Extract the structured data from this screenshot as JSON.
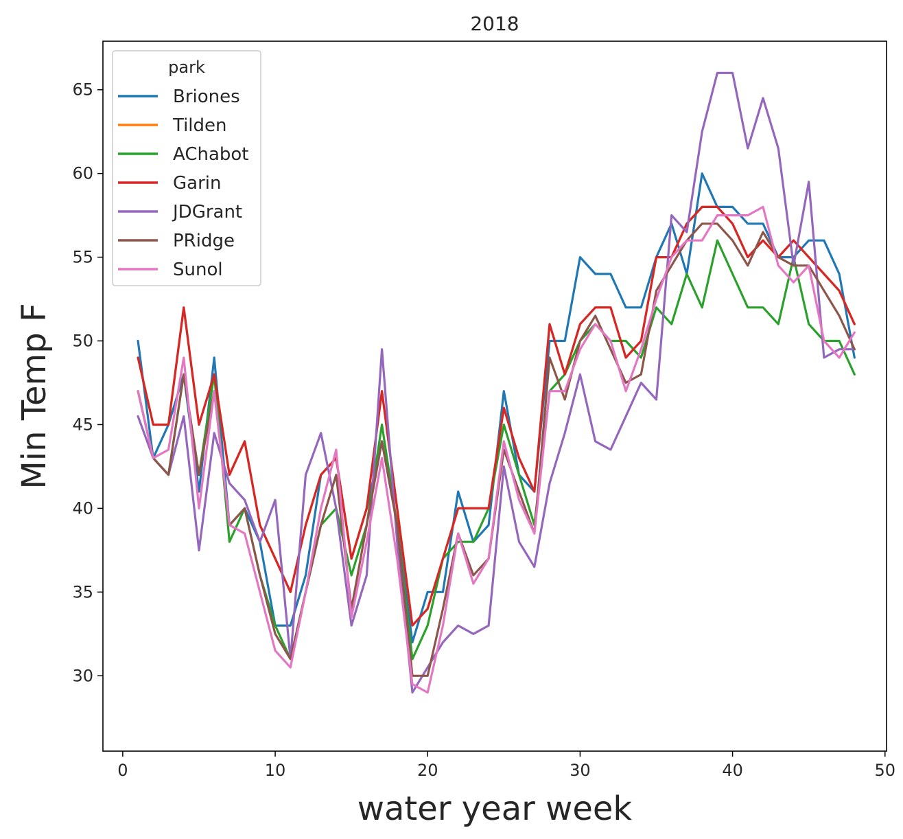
{
  "chart_data": {
    "type": "line",
    "title": "2018",
    "xlabel": "water year week",
    "ylabel": "Min Temp F",
    "xlim": [
      -1.3,
      50.1
    ],
    "ylim": [
      25.5,
      67.9
    ],
    "xticks": [
      0,
      10,
      20,
      30,
      40,
      50
    ],
    "yticks": [
      30,
      35,
      40,
      45,
      50,
      55,
      60,
      65
    ],
    "grid": false,
    "legend": {
      "title": "park",
      "position": "upper-left"
    },
    "x": [
      1,
      2,
      3,
      4,
      5,
      6,
      7,
      8,
      9,
      10,
      11,
      12,
      13,
      14,
      15,
      16,
      17,
      18,
      19,
      20,
      21,
      22,
      23,
      24,
      25,
      26,
      27,
      28,
      29,
      30,
      31,
      32,
      33,
      34,
      35,
      36,
      37,
      38,
      39,
      40,
      41,
      42,
      43,
      44,
      45,
      46,
      47,
      48
    ],
    "series": [
      {
        "name": "Briones",
        "color": "#1f77b4",
        "values": [
          50,
          43,
          45,
          48,
          41,
          49,
          39,
          40,
          38,
          33,
          33,
          36,
          42,
          43,
          37,
          40,
          44,
          39,
          32,
          35,
          35,
          41,
          38,
          39,
          47,
          42,
          41,
          50,
          50,
          55,
          54,
          54,
          52,
          52,
          55,
          57,
          54,
          60,
          58,
          58,
          57,
          57,
          55,
          55,
          56,
          56,
          54,
          49
        ]
      },
      {
        "name": "Tilden",
        "color": "#ff7f0e",
        "values": [
          49,
          45,
          45,
          52,
          45,
          48,
          42,
          44,
          39,
          37,
          35,
          39,
          42,
          43,
          37,
          40,
          47,
          40,
          33,
          34,
          37,
          40,
          40,
          40,
          46,
          43,
          41,
          51,
          48,
          51,
          52,
          52,
          49,
          50,
          55,
          55,
          57,
          58,
          58,
          57,
          55,
          56,
          55,
          56,
          55,
          54,
          53,
          51
        ]
      },
      {
        "name": "AChabot",
        "color": "#2ca02c",
        "values": [
          47,
          43,
          42,
          48,
          42,
          48,
          38,
          40,
          36,
          33,
          31,
          35,
          39,
          40,
          36,
          39,
          45,
          39,
          31,
          33,
          37,
          38,
          38,
          40,
          45,
          42,
          39,
          47,
          48,
          50,
          51,
          50,
          50,
          49,
          52,
          51,
          54,
          52,
          56,
          54,
          52,
          52,
          51,
          55,
          51,
          50,
          50,
          48
        ]
      },
      {
        "name": "Garin",
        "color": "#d62728",
        "values": [
          49,
          45,
          45,
          52,
          45,
          48,
          42,
          44,
          39,
          37,
          35,
          39,
          42,
          43,
          37,
          40,
          47,
          40,
          33,
          34,
          37,
          40,
          40,
          40,
          46,
          43,
          41,
          51,
          48,
          51,
          52,
          52,
          49,
          50,
          55,
          55,
          57,
          58,
          58,
          57,
          55,
          56,
          55,
          56,
          55,
          54,
          53,
          51
        ]
      },
      {
        "name": "JDGrant",
        "color": "#9467bd",
        "values": [
          45.5,
          43,
          42,
          45.5,
          37.5,
          44.5,
          41.5,
          40.5,
          38,
          40.5,
          31,
          42,
          44.5,
          40,
          33,
          36,
          49.5,
          38,
          29,
          30.5,
          32,
          33,
          32.5,
          33,
          42.5,
          38,
          36.5,
          41.5,
          44.5,
          48,
          44,
          43.5,
          45.5,
          47.5,
          46.5,
          57.5,
          56.5,
          62.5,
          66,
          66,
          61.5,
          64.5,
          61.5,
          54.5,
          59.5,
          49,
          49.5,
          49.5
        ]
      },
      {
        "name": "PRidge",
        "color": "#8c564b",
        "values": [
          47,
          43,
          42,
          48,
          42,
          47,
          39,
          40,
          36,
          32.5,
          31,
          35,
          39,
          42,
          34,
          39,
          44,
          39,
          30,
          30,
          34,
          38.5,
          36,
          37,
          43.5,
          41,
          38.5,
          49,
          46.5,
          50,
          51.5,
          49.5,
          47.5,
          48,
          53,
          54.5,
          56,
          57,
          57,
          56,
          54.5,
          56.5,
          55,
          54.5,
          54.5,
          53,
          51.5,
          49.5
        ]
      },
      {
        "name": "Sunol",
        "color": "#e377c2",
        "values": [
          47,
          43,
          43.5,
          49,
          40,
          47,
          39,
          38.5,
          35,
          31.5,
          30.5,
          35,
          40,
          43.5,
          33.5,
          38,
          43,
          37,
          29.5,
          29,
          33,
          38.5,
          35.5,
          37,
          44,
          40.5,
          38.5,
          47,
          47,
          49.5,
          51,
          50,
          47,
          49.5,
          52.5,
          55,
          56,
          56,
          57.5,
          57.5,
          57.5,
          58,
          54.5,
          53.5,
          54.5,
          50,
          49,
          50.5
        ]
      }
    ]
  }
}
